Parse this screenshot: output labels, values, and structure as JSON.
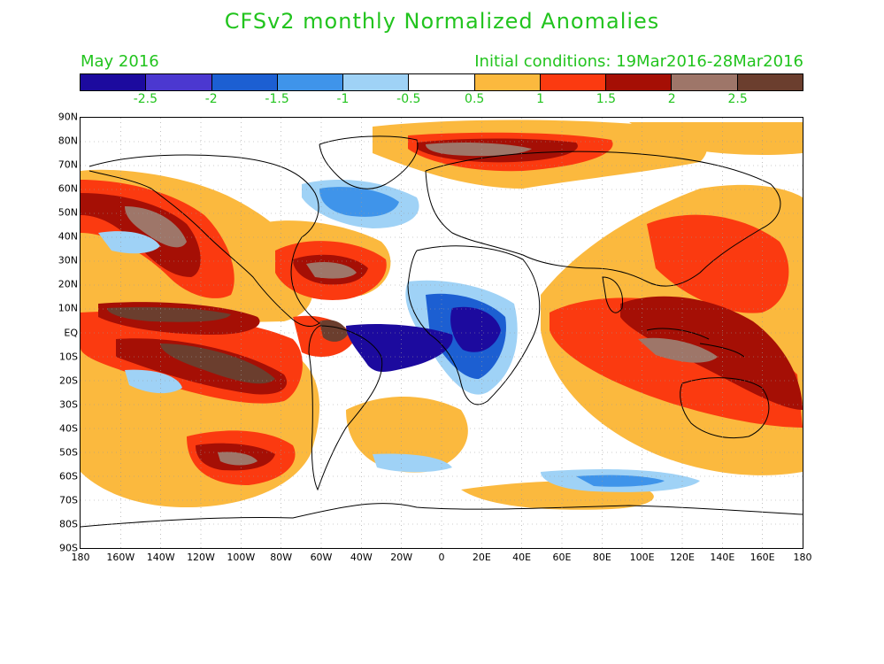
{
  "title": "CFSv2 monthly Normalized Anomalies",
  "month": "May 2016",
  "initial_conditions": "Initial conditions: 19Mar2016-28Mar2016",
  "colorbar": {
    "colors": [
      "#1c0a9e",
      "#4b38d0",
      "#1c5fd2",
      "#3f94ea",
      "#9fd2f6",
      "#ffffff",
      "#fbb93e",
      "#fb3a10",
      "#a50f05",
      "#9e7669",
      "#6b3e2e"
    ],
    "labels": [
      "-2.5",
      "-2",
      "-1.5",
      "-1",
      "-0.5",
      "0.5",
      "1",
      "1.5",
      "2",
      "2.5"
    ]
  },
  "lat_labels": [
    "90N",
    "80N",
    "70N",
    "60N",
    "50N",
    "40N",
    "30N",
    "20N",
    "10N",
    "EQ",
    "10S",
    "20S",
    "30S",
    "40S",
    "50S",
    "60S",
    "70S",
    "80S",
    "90S"
  ],
  "lon_labels": [
    "180",
    "160W",
    "140W",
    "120W",
    "100W",
    "80W",
    "60W",
    "40W",
    "20W",
    "0",
    "20E",
    "40E",
    "60E",
    "80E",
    "100E",
    "120E",
    "140E",
    "160E",
    "180"
  ],
  "map_regions": {
    "orange": "#fbb93e",
    "red": "#fb3a10",
    "darkred": "#a50f05",
    "brown": "#9e7669",
    "darkbrown": "#6b3e2e",
    "lightblue": "#9fd2f6",
    "blue": "#3f94ea",
    "midblue": "#1c5fd2",
    "navy": "#1c0a9e"
  }
}
